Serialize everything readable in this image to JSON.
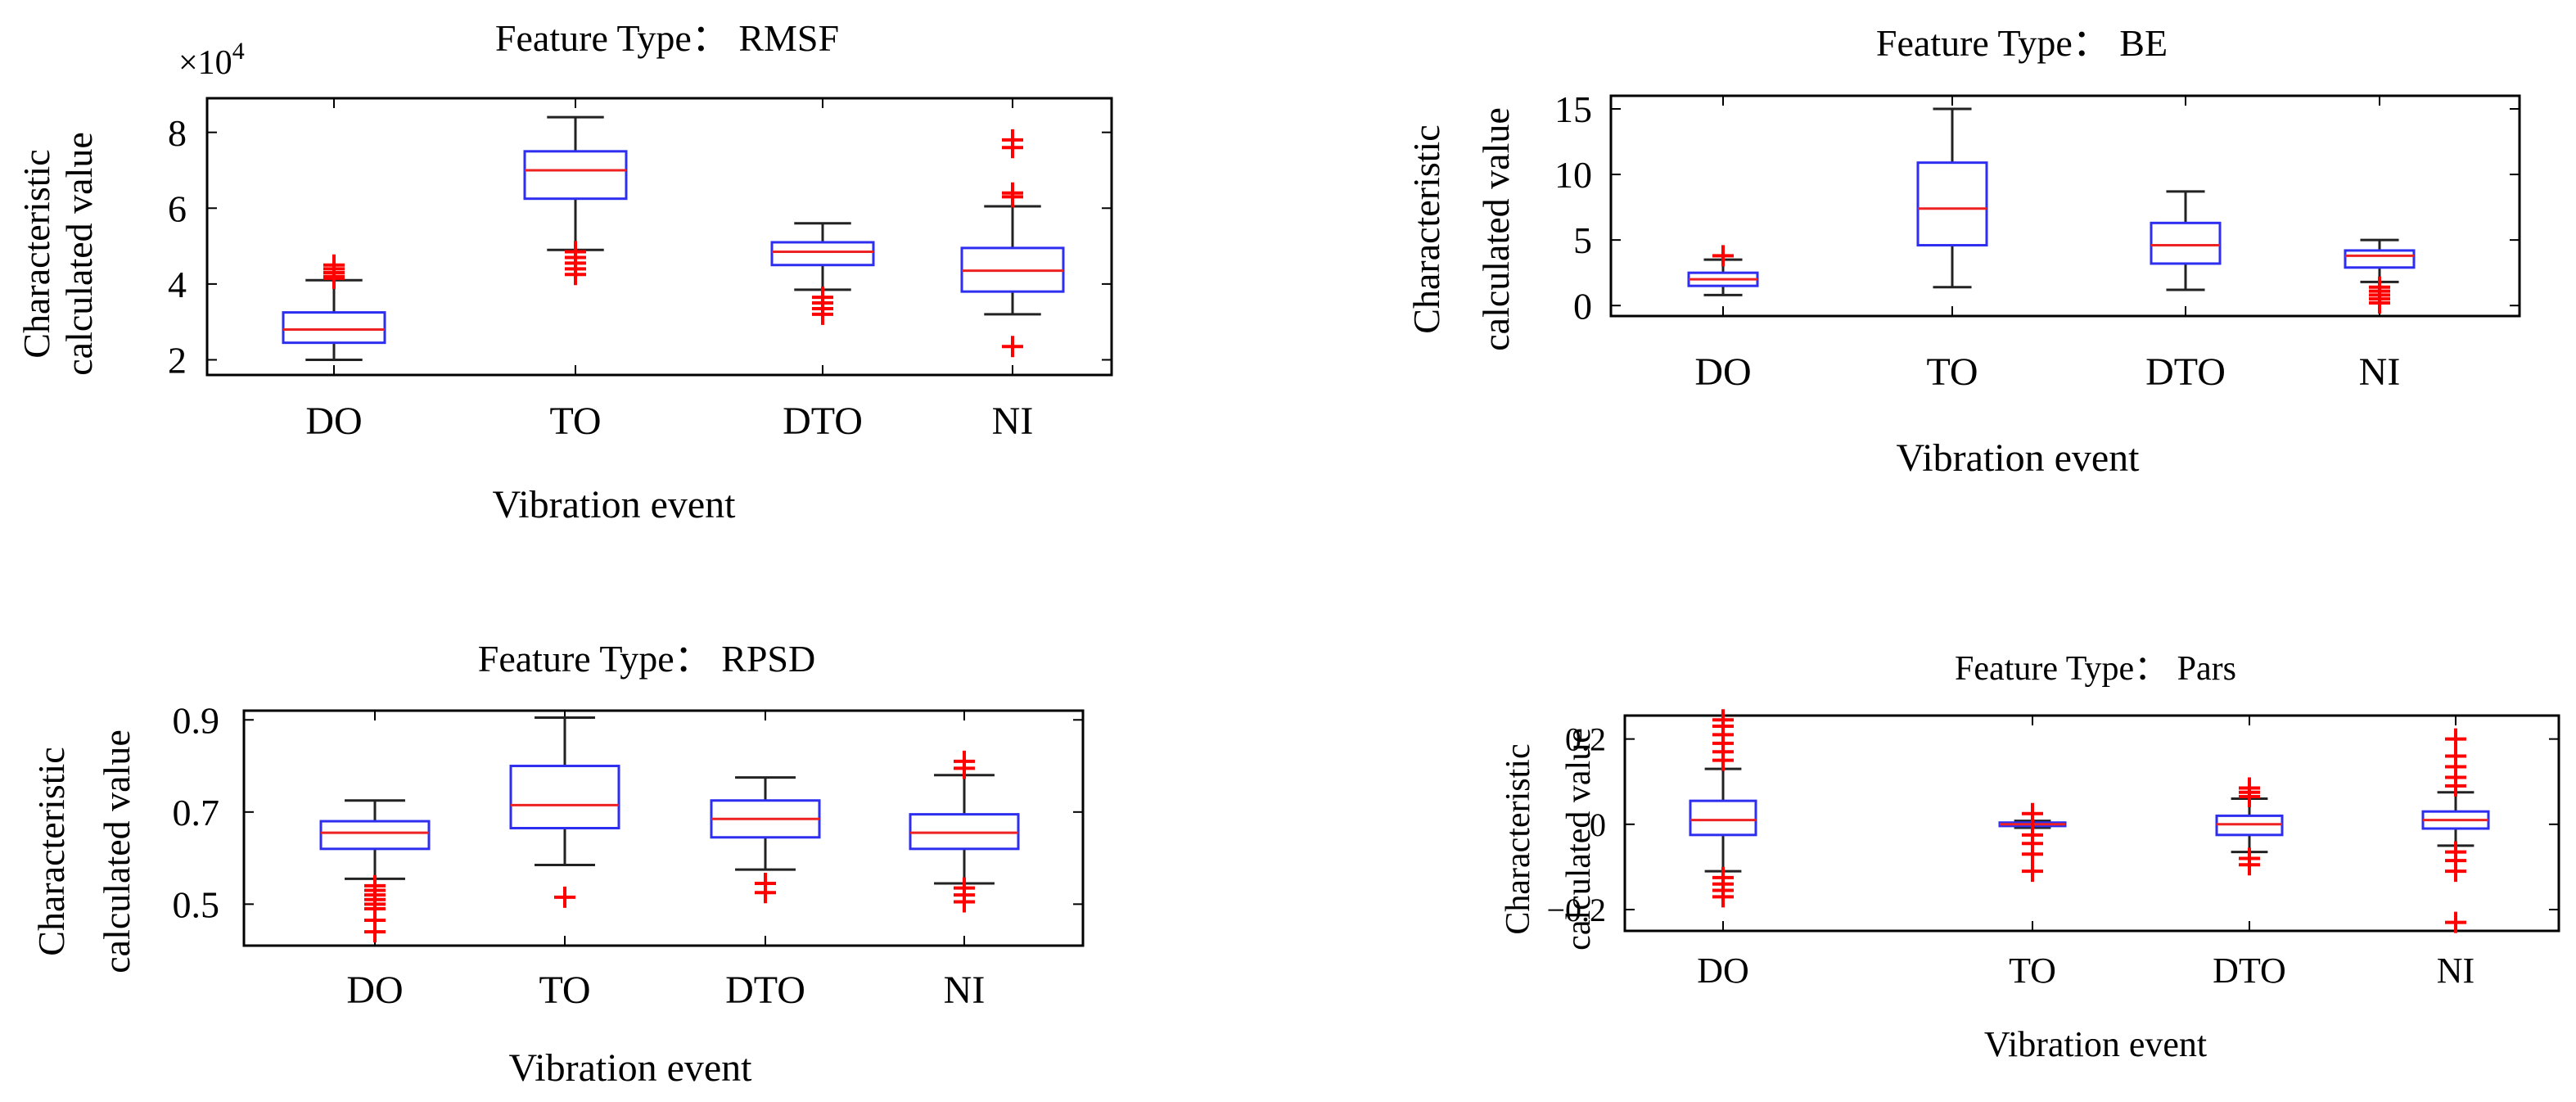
{
  "chart_data": [
    {
      "type": "boxplot",
      "title": "Feature Type： RMSF",
      "xlabel": "Vibration event",
      "ylabel": [
        "Characteristic",
        "calculated value"
      ],
      "multiplier": "×10",
      "multiplier_exp": "4",
      "categories": [
        "DO",
        "TO",
        "DTO",
        "NI"
      ],
      "yticks": [
        2,
        4,
        6,
        8
      ],
      "ytick_labels": [
        "2",
        "4",
        "6",
        "8"
      ],
      "ylim": [
        1.6,
        8.9
      ],
      "boxes": [
        {
          "whisker_low": 2.0,
          "q1": 2.45,
          "median": 2.8,
          "q3": 3.25,
          "whisker_high": 4.1,
          "outliers": [
            4.15,
            4.2,
            4.3,
            4.4,
            4.5
          ]
        },
        {
          "whisker_low": 4.9,
          "q1": 6.25,
          "median": 7.0,
          "q3": 7.5,
          "whisker_high": 8.4,
          "outliers": [
            4.25,
            4.4,
            4.55,
            4.7,
            4.85
          ]
        },
        {
          "whisker_low": 3.85,
          "q1": 4.5,
          "median": 4.85,
          "q3": 5.1,
          "whisker_high": 5.6,
          "outliers": [
            3.2,
            3.35,
            3.5,
            3.65
          ]
        },
        {
          "whisker_low": 3.2,
          "q1": 3.8,
          "median": 4.35,
          "q3": 4.95,
          "whisker_high": 6.05,
          "outliers": [
            2.35,
            6.3,
            6.4,
            7.6,
            7.8
          ]
        }
      ]
    },
    {
      "type": "boxplot",
      "title": "Feature Type： BE",
      "xlabel": "Vibration event",
      "ylabel": [
        "Characteristic",
        "calculated value"
      ],
      "categories": [
        "DO",
        "TO",
        "DTO",
        "NI"
      ],
      "yticks": [
        0,
        5,
        10,
        15
      ],
      "ytick_labels": [
        "0",
        "5",
        "10",
        "15"
      ],
      "ylim": [
        -0.8,
        16
      ],
      "boxes": [
        {
          "whisker_low": 0.8,
          "q1": 1.5,
          "median": 2.0,
          "q3": 2.5,
          "whisker_high": 3.5,
          "outliers": [
            3.8
          ]
        },
        {
          "whisker_low": 1.4,
          "q1": 4.6,
          "median": 7.4,
          "q3": 10.9,
          "whisker_high": 15.0,
          "outliers": []
        },
        {
          "whisker_low": 1.2,
          "q1": 3.2,
          "median": 4.6,
          "q3": 6.3,
          "whisker_high": 8.7,
          "outliers": []
        },
        {
          "whisker_low": 1.8,
          "q1": 2.9,
          "median": 3.8,
          "q3": 4.2,
          "whisker_high": 5.0,
          "outliers": [
            0.2,
            0.5,
            0.8,
            1.1,
            1.4
          ]
        }
      ]
    },
    {
      "type": "boxplot",
      "title": "Feature Type： RPSD",
      "xlabel": "Vibration event",
      "ylabel": [
        "Characteristic",
        "calculated value"
      ],
      "categories": [
        "DO",
        "TO",
        "DTO",
        "NI"
      ],
      "yticks": [
        0.5,
        0.7,
        0.9
      ],
      "ytick_labels": [
        "0.5",
        "0.7",
        "0.9"
      ],
      "ylim": [
        0.41,
        0.92
      ],
      "boxes": [
        {
          "whisker_low": 0.555,
          "q1": 0.62,
          "median": 0.655,
          "q3": 0.68,
          "whisker_high": 0.725,
          "outliers": [
            0.44,
            0.465,
            0.49,
            0.5,
            0.51,
            0.52,
            0.53,
            0.54
          ]
        },
        {
          "whisker_low": 0.585,
          "q1": 0.665,
          "median": 0.715,
          "q3": 0.8,
          "whisker_high": 0.905,
          "outliers": [
            0.515
          ]
        },
        {
          "whisker_low": 0.575,
          "q1": 0.645,
          "median": 0.685,
          "q3": 0.725,
          "whisker_high": 0.775,
          "outliers": [
            0.525,
            0.545
          ]
        },
        {
          "whisker_low": 0.545,
          "q1": 0.62,
          "median": 0.655,
          "q3": 0.695,
          "whisker_high": 0.78,
          "outliers": [
            0.505,
            0.52,
            0.535,
            0.795,
            0.81
          ]
        }
      ]
    },
    {
      "type": "boxplot",
      "title": "Feature Type： Pars",
      "xlabel": "Vibration event",
      "ylabel": [
        "Characteristic",
        "calculated value"
      ],
      "categories": [
        "DO",
        "TO",
        "DTO",
        "NI"
      ],
      "yticks": [
        0.2,
        0,
        -0.2
      ],
      "ytick_labels": [
        "0.2",
        "0",
        "−0.2"
      ],
      "ylim": [
        -0.25,
        0.255
      ],
      "boxes": [
        {
          "whisker_low": -0.11,
          "q1": -0.025,
          "median": 0.01,
          "q3": 0.055,
          "whisker_high": 0.13,
          "outliers": [
            -0.17,
            -0.155,
            -0.14,
            -0.125,
            0.15,
            0.17,
            0.19,
            0.21,
            0.23,
            0.245
          ]
        },
        {
          "whisker_low": -0.008,
          "q1": -0.004,
          "median": 0.0,
          "q3": 0.004,
          "whisker_high": 0.008,
          "outliers": [
            -0.11,
            -0.07,
            -0.045,
            -0.025,
            0.025
          ]
        },
        {
          "whisker_low": -0.065,
          "q1": -0.025,
          "median": 0.0,
          "q3": 0.02,
          "whisker_high": 0.06,
          "outliers": [
            -0.095,
            -0.08,
            0.065,
            0.075,
            0.085
          ]
        },
        {
          "whisker_low": -0.05,
          "q1": -0.01,
          "median": 0.01,
          "q3": 0.03,
          "whisker_high": 0.075,
          "outliers": [
            -0.23,
            -0.11,
            -0.085,
            -0.065,
            0.09,
            0.11,
            0.135,
            0.16,
            0.2
          ]
        }
      ]
    }
  ],
  "colors": {
    "box": "#2e2ef0",
    "median": "#ee2222",
    "whisker": "#222222",
    "outlier": "#ff0000",
    "axis": "#000000"
  }
}
